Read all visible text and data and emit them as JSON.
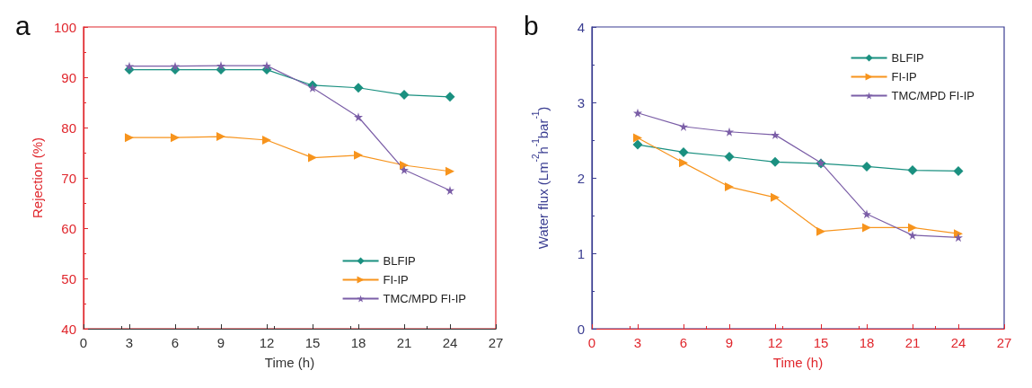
{
  "chart_data": [
    {
      "type": "line",
      "title": "a",
      "xlabel": "Time (h)",
      "ylabel": "Rejection (%)",
      "x": [
        3,
        6,
        9,
        12,
        15,
        18,
        21,
        24
      ],
      "xlim": [
        0,
        27
      ],
      "xticks": [
        0,
        3,
        6,
        9,
        12,
        15,
        18,
        21,
        24,
        27
      ],
      "ylim": [
        40,
        100
      ],
      "yticks": [
        40,
        50,
        60,
        70,
        80,
        90,
        100
      ],
      "grid": false,
      "legend": "bottom right",
      "series": [
        {
          "name": "BLFIP",
          "color": "#1a9080",
          "marker": "diamond",
          "values": [
            91.5,
            91.5,
            91.5,
            91.5,
            88.4,
            87.9,
            86.5,
            86.1
          ]
        },
        {
          "name": "FI-IP",
          "color": "#f7941d",
          "marker": "triangle",
          "values": [
            78,
            78,
            78.2,
            77.5,
            74,
            74.5,
            72.5,
            71.3
          ]
        },
        {
          "name": "TMC/MPD FI-IP",
          "color": "#7b5ea7",
          "marker": "star",
          "values": [
            92.2,
            92.2,
            92.3,
            92.3,
            87.9,
            82.1,
            71.6,
            67.5
          ]
        }
      ]
    },
    {
      "type": "line",
      "title": "b",
      "xlabel": "Time (h)",
      "ylabel": "Water flux (Lm$^{-2}$h$^{-1}$bar$^{-1}$)",
      "x": [
        3,
        6,
        9,
        12,
        15,
        18,
        21,
        24
      ],
      "xlim": [
        0,
        27
      ],
      "xticks": [
        0,
        3,
        6,
        9,
        12,
        15,
        18,
        21,
        24,
        27
      ],
      "ylim": [
        0,
        4
      ],
      "yticks": [
        0,
        1,
        2,
        3,
        4
      ],
      "grid": false,
      "legend": "top right",
      "series": [
        {
          "name": "BLFIP",
          "color": "#1a9080",
          "marker": "diamond",
          "values": [
            2.44,
            2.34,
            2.28,
            2.21,
            2.19,
            2.15,
            2.1,
            2.09
          ]
        },
        {
          "name": "FI-IP",
          "color": "#f7941d",
          "marker": "triangle",
          "values": [
            2.53,
            2.2,
            1.88,
            1.74,
            1.29,
            1.34,
            1.34,
            1.26
          ]
        },
        {
          "name": "TMC/MPD FI-IP",
          "color": "#7b5ea7",
          "marker": "star",
          "values": [
            2.86,
            2.68,
            2.61,
            2.57,
            2.2,
            1.52,
            1.24,
            1.21
          ]
        }
      ]
    }
  ]
}
